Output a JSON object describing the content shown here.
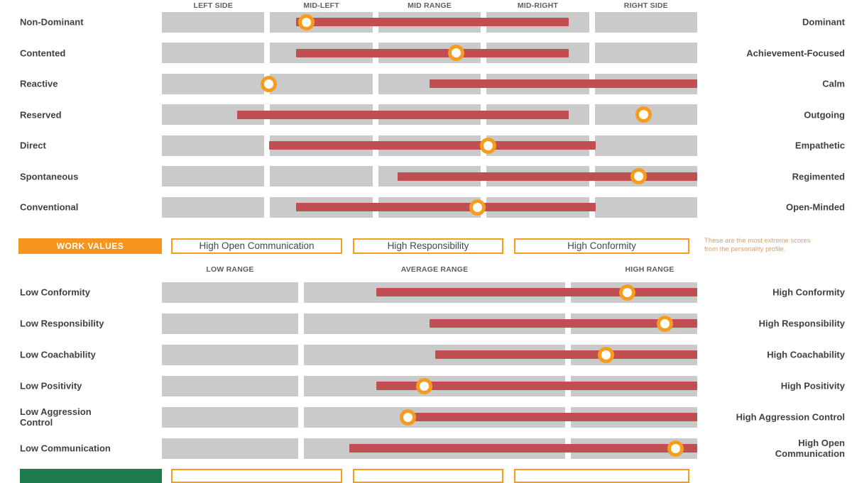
{
  "colors": {
    "track_gray": "#cacacb",
    "range_bar_red": "#c14e53",
    "marker_orange": "#f89c1c",
    "work_values_orange": "#f7941e",
    "bottom_band_green": "#1e7b4c",
    "label_charcoal": "#3e4245",
    "note_tan": "#d99f6e"
  },
  "personality_section": {
    "band_headers": [
      "LEFT SIDE",
      "MID-LEFT",
      "MID RANGE",
      "MID-RIGHT",
      "RIGHT SIDE"
    ]
  },
  "work_values_band": {
    "title": "WORK VALUES",
    "badges": [
      "High Open Communication",
      "High Responsibility",
      "High Conformity"
    ],
    "note_lines": [
      "These are the most extreme scores",
      "from the personality profile."
    ]
  },
  "work_values_section": {
    "band_headers": [
      "LOW RANGE",
      "AVERAGE RANGE",
      "HIGH RANGE"
    ]
  },
  "chart_data": [
    {
      "type": "range-dot",
      "title": "Personality profile — behavioral traits",
      "scale": [
        0,
        100
      ],
      "bands": [
        "LEFT SIDE",
        "MID-LEFT",
        "MID RANGE",
        "MID-RIGHT",
        "RIGHT SIDE"
      ],
      "band_widths_pct": [
        20,
        20,
        20,
        20,
        20
      ],
      "rows": [
        {
          "left_label": "Non-Dominant",
          "right_label": "Dominant",
          "range": [
            25,
            76
          ],
          "score": 27
        },
        {
          "left_label": "Contented",
          "right_label": "Achievement-Focused",
          "range": [
            25,
            76
          ],
          "score": 55
        },
        {
          "left_label": "Reactive",
          "right_label": "Calm",
          "range": [
            50,
            100
          ],
          "score": 20
        },
        {
          "left_label": "Reserved",
          "right_label": "Outgoing",
          "range": [
            14,
            76
          ],
          "score": 90
        },
        {
          "left_label": "Direct",
          "right_label": "Empathetic",
          "range": [
            20,
            81
          ],
          "score": 61
        },
        {
          "left_label": "Spontaneous",
          "right_label": "Regimented",
          "range": [
            44,
            100
          ],
          "score": 89
        },
        {
          "left_label": "Conventional",
          "right_label": "Open-Minded",
          "range": [
            25,
            81
          ],
          "score": 59
        }
      ]
    },
    {
      "type": "range-dot",
      "title": "Work values",
      "scale": [
        0,
        100
      ],
      "bands": [
        "LOW RANGE",
        "AVERAGE RANGE",
        "HIGH RANGE"
      ],
      "band_widths_pct": [
        26,
        49,
        25
      ],
      "rows": [
        {
          "left_label": "Low Conformity",
          "right_label": "High Conformity",
          "range": [
            40,
            100
          ],
          "score": 87
        },
        {
          "left_label": "Low Responsibility",
          "right_label": "High Responsibility",
          "range": [
            50,
            100
          ],
          "score": 94
        },
        {
          "left_label": "Low Coachability",
          "right_label": "High Coachability",
          "range": [
            51,
            100
          ],
          "score": 83
        },
        {
          "left_label": "Low Positivity",
          "right_label": "High Positivity",
          "range": [
            40,
            100
          ],
          "score": 49
        },
        {
          "left_label": "Low Aggression Control",
          "right_label": "High Aggression Control",
          "range": [
            46,
            100
          ],
          "score": 46
        },
        {
          "left_label": "Low Communication",
          "right_label": "High Open Communication",
          "range": [
            35,
            100
          ],
          "score": 96
        }
      ]
    }
  ]
}
